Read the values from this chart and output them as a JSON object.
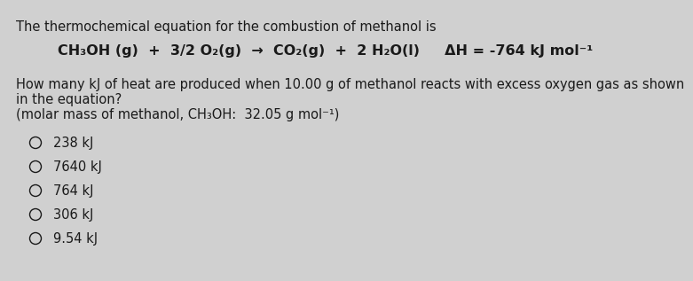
{
  "bg_color": "#d0d0d0",
  "text_color": "#1a1a1a",
  "title_line": "The thermochemical equation for the combustion of methanol is",
  "equation_main": "CH₃OH (g)  +  3/2 O₂(g)  →  CO₂(g)  +  2 H₂O(l)     ΔH = -764 kJ mol⁻¹",
  "question_line1": "How many kJ of heat are produced when 10.00 g of methanol reacts with excess oxygen gas as shown",
  "question_line2": "in the equation?",
  "molar_mass_line": "(molar mass of methanol, CH₃OH:  32.05 g mol⁻¹)",
  "options": [
    "238 kJ",
    "7640 kJ",
    "764 kJ",
    "306 kJ",
    "9.54 kJ"
  ],
  "font_size_title": 10.5,
  "font_size_equation": 11.5,
  "font_size_question": 10.5,
  "font_size_options": 10.5
}
